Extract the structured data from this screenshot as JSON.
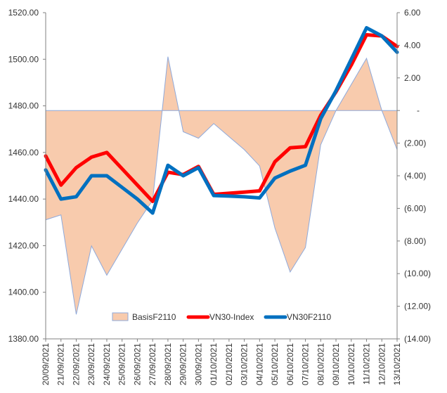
{
  "chart_data": {
    "type": "line",
    "categories": [
      "20/09/2021",
      "21/09/2021",
      "22/09/2021",
      "23/09/2021",
      "24/09/2021",
      "25/09/2021",
      "26/09/2021",
      "27/09/2021",
      "28/09/2021",
      "29/09/2021",
      "30/09/2021",
      "01/10/2021",
      "02/10/2021",
      "03/10/2021",
      "04/10/2021",
      "05/10/2021",
      "06/10/2021",
      "07/10/2021",
      "08/10/2021",
      "09/10/2021",
      "10/10/2021",
      "11/10/2021",
      "12/10/2021",
      "13/10/2021"
    ],
    "y_left": {
      "range": [
        1380,
        1520
      ],
      "ticks": [
        "1520.00",
        "1500.00",
        "1480.00",
        "1460.00",
        "1440.00",
        "1420.00",
        "1400.00",
        "1380.00"
      ]
    },
    "y_right": {
      "range": [
        -14,
        6
      ],
      "ticks": [
        "6.00",
        "4.00",
        "2.00",
        "-",
        "(2.00)",
        "(4.00)",
        "(6.00)",
        "(8.00)",
        "(10.00)",
        "(12.00)",
        "(14.00)"
      ]
    },
    "series": [
      {
        "name": "BasisF2110",
        "kind": "area",
        "axis": "right",
        "color": "#F8CBAD",
        "edge_color": "#8EA9DB",
        "values": [
          -6.7,
          -6.4,
          -12.5,
          -8.3,
          -10.1,
          -8.5,
          -6.9,
          -5.5,
          3.3,
          -1.3,
          -1.7,
          -0.8,
          -1.6,
          -2.4,
          -3.4,
          -7.2,
          -9.9,
          -8.4,
          -2.1,
          0.0,
          1.6,
          3.2,
          0.0,
          -2.4
        ]
      },
      {
        "name": "VN30-Index",
        "kind": "line",
        "axis": "left",
        "color": "#FF0000",
        "values": [
          1458.5,
          1446.0,
          1453.5,
          1458.0,
          1460.0,
          1453.0,
          1446.0,
          1439.0,
          1451.5,
          1450.5,
          1454.0,
          1442.0,
          1442.5,
          1443.0,
          1443.5,
          1456.0,
          1462.0,
          1462.5,
          1476.0,
          1486.0,
          1497.5,
          1510.5,
          1510.0,
          1505.5
        ]
      },
      {
        "name": "VN30F2110",
        "kind": "line",
        "axis": "left",
        "color": "#0070C0",
        "values": [
          1452.5,
          1440.0,
          1441.0,
          1450.0,
          1450.0,
          1445.0,
          1440.0,
          1434.0,
          1454.5,
          1450.0,
          1453.5,
          1441.5,
          1441.3,
          1441.0,
          1440.5,
          1449.0,
          1452.0,
          1454.5,
          1474.5,
          1486.5,
          1500.0,
          1513.5,
          1510.0,
          1503.0
        ]
      }
    ],
    "legend": [
      "BasisF2110",
      "VN30-Index",
      "VN30F2110"
    ],
    "legend_position": "bottom-inside",
    "grid": false
  }
}
